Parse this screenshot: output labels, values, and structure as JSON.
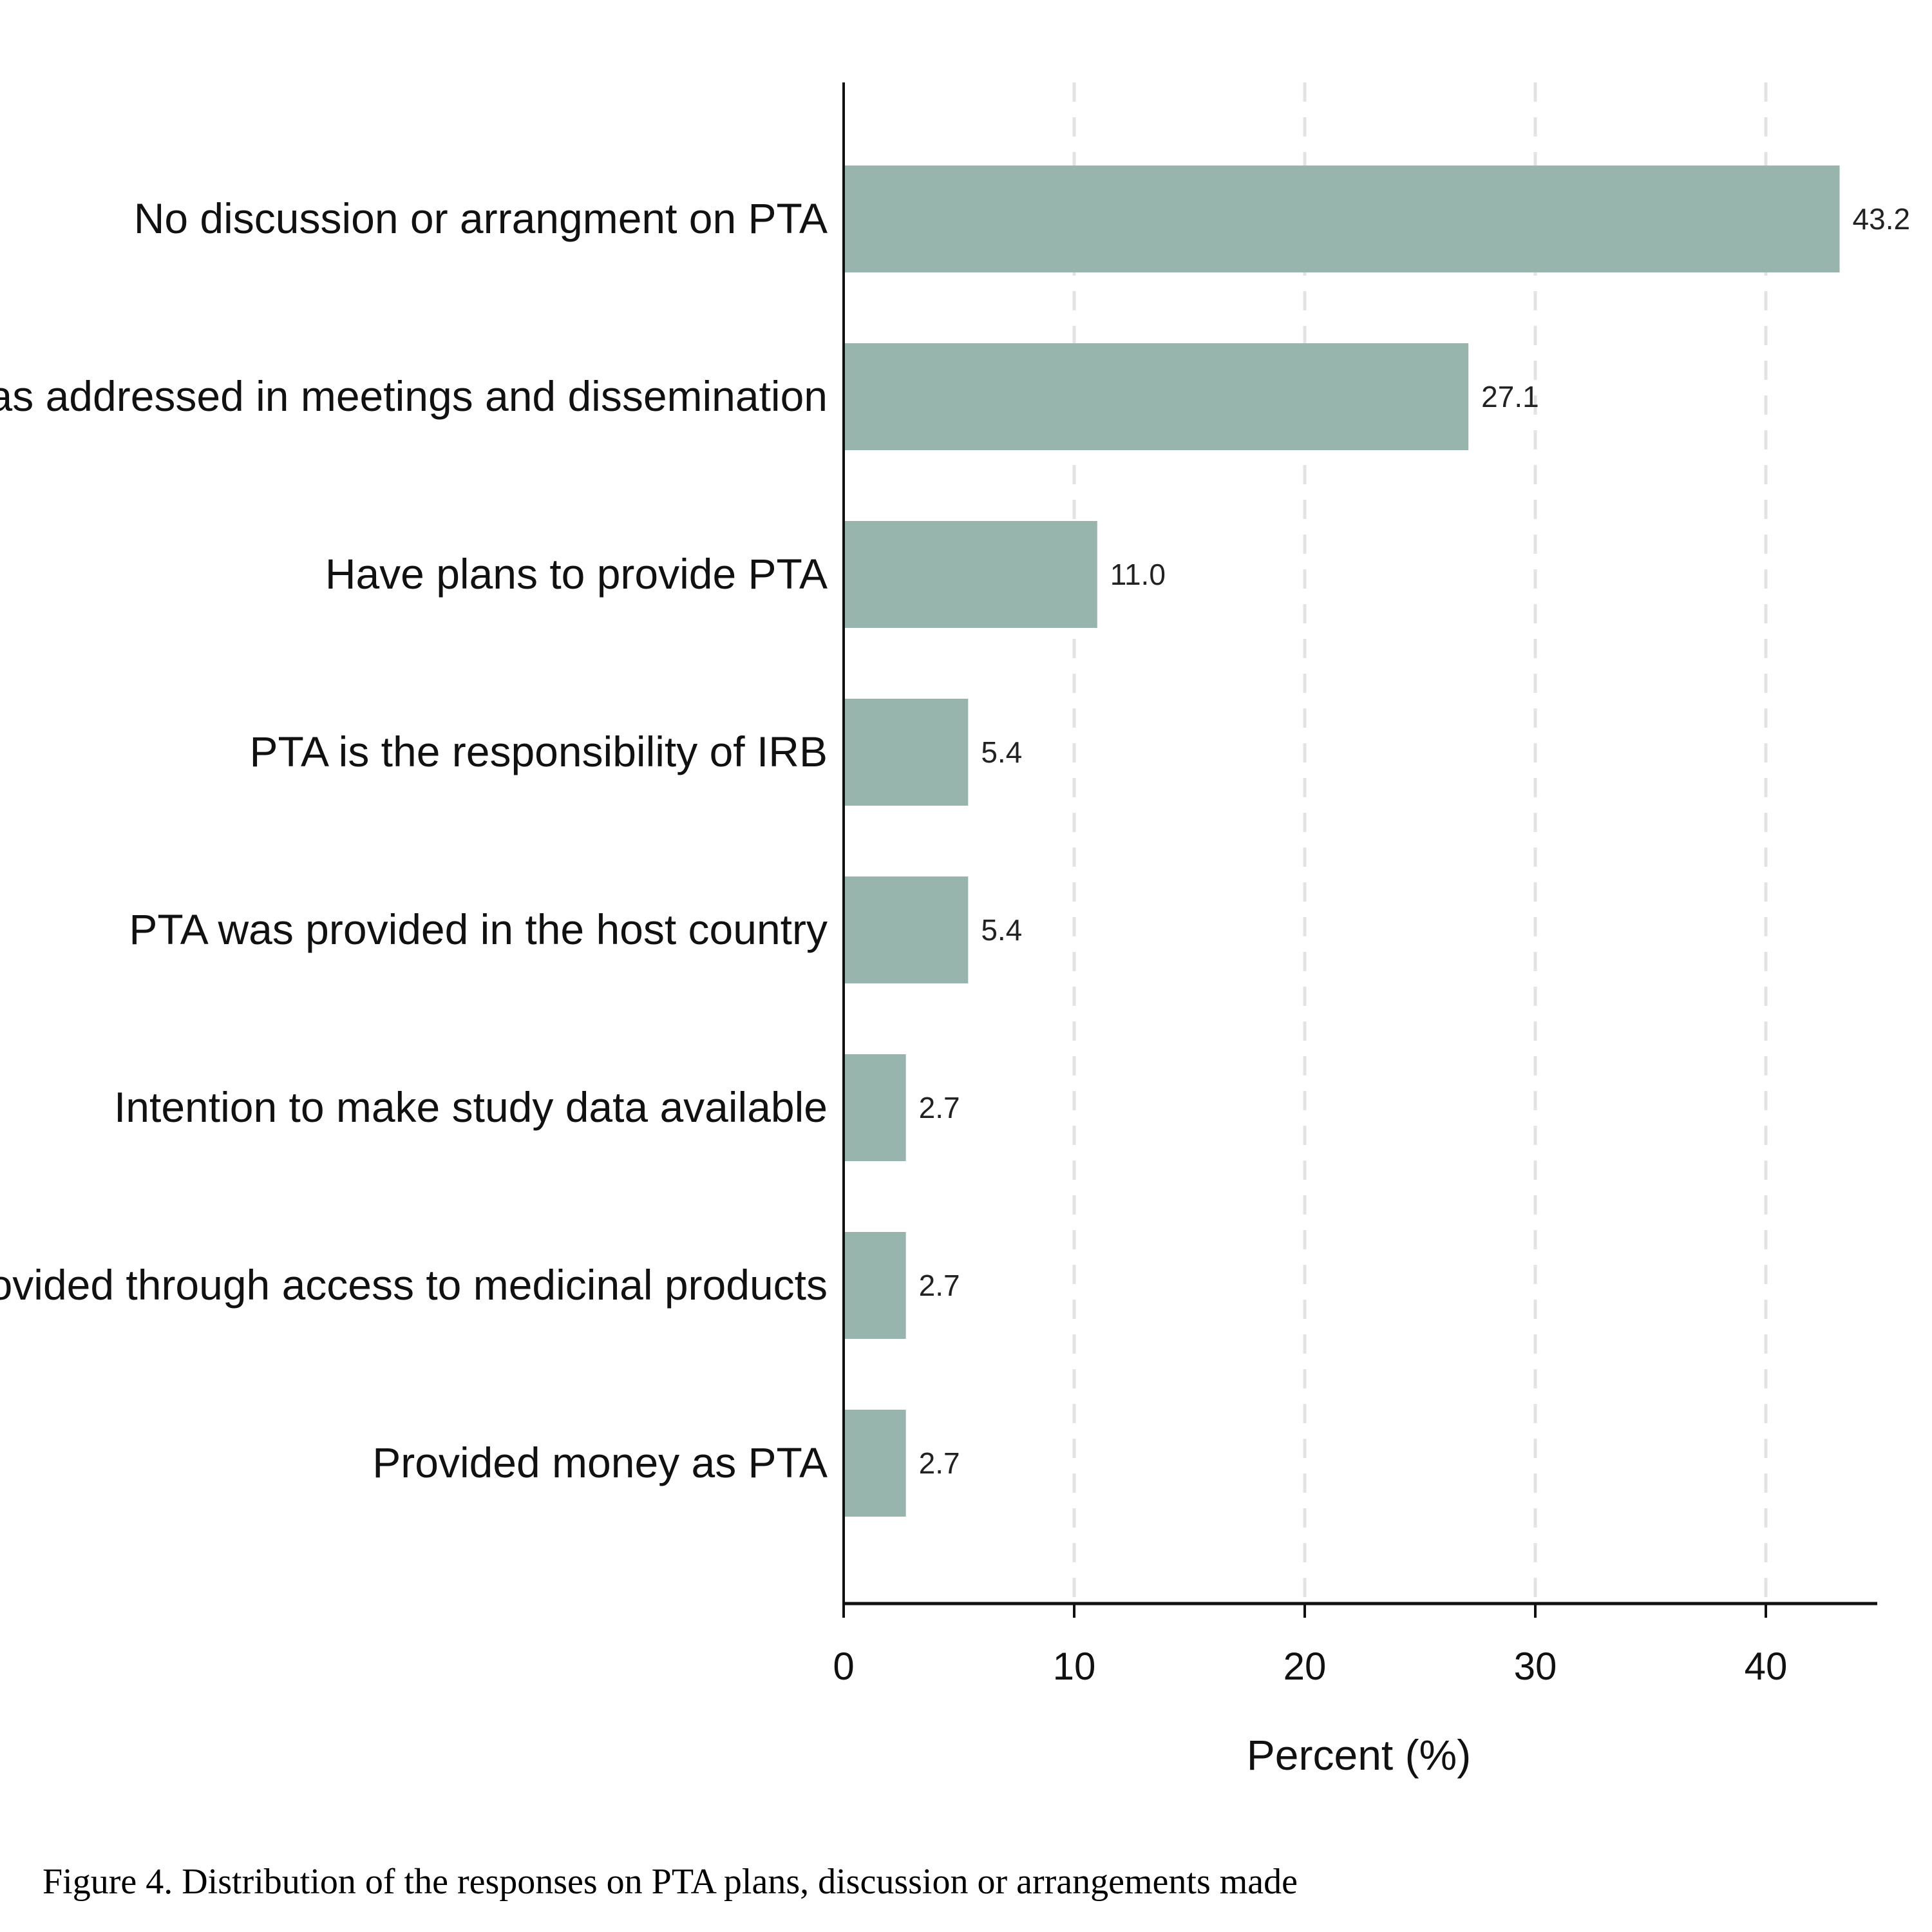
{
  "chart_data": {
    "type": "bar",
    "orientation": "horizontal",
    "categories": [
      "No discussion or arrangment on PTA",
      "PTA was addressed in meetings and dissemination",
      "Have plans to provide PTA",
      "PTA is the responsibility of IRB",
      "PTA was provided in the host country",
      "Intention to make study data available",
      "PTA provided through access to medicinal products",
      "Provided money as PTA"
    ],
    "values": [
      43.2,
      27.1,
      11.0,
      5.4,
      5.4,
      2.7,
      2.7,
      2.7
    ],
    "value_labels": [
      "43.2",
      "27.1",
      "11.0",
      "5.4",
      "5.4",
      "2.7",
      "2.7",
      "2.7"
    ],
    "xlabel": "Percent (%)",
    "ylabel": "",
    "xlim": [
      0,
      45
    ],
    "xticks": [
      0,
      10,
      20,
      30,
      40
    ],
    "grid": "vertical dashed",
    "bar_color": "#98b5ad"
  },
  "caption": "Figure 4. Distribution of the responses on PTA plans, discussion or arrangements made"
}
